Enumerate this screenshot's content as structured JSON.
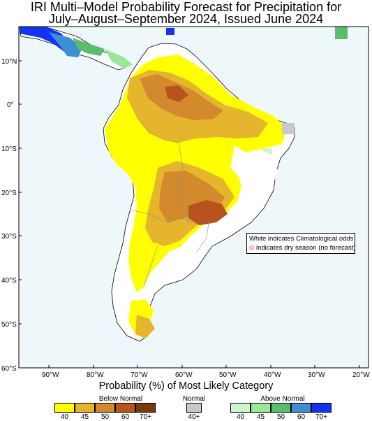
{
  "title_line1": "IRI Multi–Model Probability Forecast for Precipitation for",
  "title_line2": "July–August–September 2024, Issued June 2024",
  "lat_labels": [
    "10°N",
    "0°",
    "10°S",
    "20°S",
    "30°S",
    "40°S",
    "50°S",
    "60°S"
  ],
  "lon_labels": [
    "90°W",
    "80°W",
    "70°W",
    "60°W",
    "50°W",
    "40°W",
    "30°W",
    "20°W"
  ],
  "note": {
    "line1": "White indicates Climatological odds",
    "line2": "indicates dry season (no forecast)"
  },
  "colorbar_title": "Probability (%) of Most Likely Category",
  "legend": {
    "below": {
      "label": "Below Normal",
      "ticks": [
        "40",
        "45",
        "50",
        "60",
        "70+"
      ],
      "colors": [
        "#ffff00",
        "#e6b52e",
        "#d28a2c",
        "#b7531f",
        "#7a3a0c"
      ]
    },
    "normal": {
      "label": "Normal",
      "ticks": [
        "40+"
      ],
      "colors": [
        "#c8c8c8"
      ]
    },
    "above": {
      "label": "Above Normal",
      "ticks": [
        "40",
        "45",
        "50",
        "60",
        "70+"
      ],
      "colors": [
        "#cff5cf",
        "#98e898",
        "#5bbd6a",
        "#3d8fd4",
        "#1433f0"
      ]
    }
  },
  "colors": {
    "ocean": "#eef8fb",
    "land": "#ffffff",
    "coast": "#000000"
  }
}
